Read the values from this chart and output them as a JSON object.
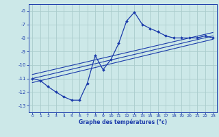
{
  "bg_color": "#cce8e8",
  "grid_color": "#aacccc",
  "line_color": "#1a3aaa",
  "xlabel": "Graphe des températures (°c)",
  "xlim": [
    -0.5,
    23.5
  ],
  "ylim": [
    -13.5,
    -5.5
  ],
  "yticks": [
    -6,
    -7,
    -8,
    -9,
    -10,
    -11,
    -12,
    -13
  ],
  "xticks": [
    0,
    1,
    2,
    3,
    4,
    5,
    6,
    7,
    8,
    9,
    10,
    11,
    12,
    13,
    14,
    15,
    16,
    17,
    18,
    19,
    20,
    21,
    22,
    23
  ],
  "main_x": [
    0,
    1,
    2,
    3,
    4,
    5,
    6,
    7,
    8,
    9,
    10,
    11,
    12,
    13,
    14,
    15,
    16,
    17,
    18,
    19,
    20,
    21,
    22,
    23
  ],
  "main_y": [
    -11.0,
    -11.15,
    -11.6,
    -12.0,
    -12.35,
    -12.6,
    -12.6,
    -11.35,
    -9.3,
    -10.35,
    -9.6,
    -8.4,
    -6.75,
    -6.1,
    -7.0,
    -7.3,
    -7.55,
    -7.85,
    -8.0,
    -8.0,
    -8.0,
    -8.0,
    -7.85,
    -8.0
  ],
  "trend_lines": [
    {
      "x": [
        0,
        23
      ],
      "y": [
        -11.0,
        -7.85
      ]
    },
    {
      "x": [
        0,
        23
      ],
      "y": [
        -11.3,
        -8.1
      ]
    },
    {
      "x": [
        0,
        23
      ],
      "y": [
        -10.7,
        -7.6
      ]
    }
  ]
}
